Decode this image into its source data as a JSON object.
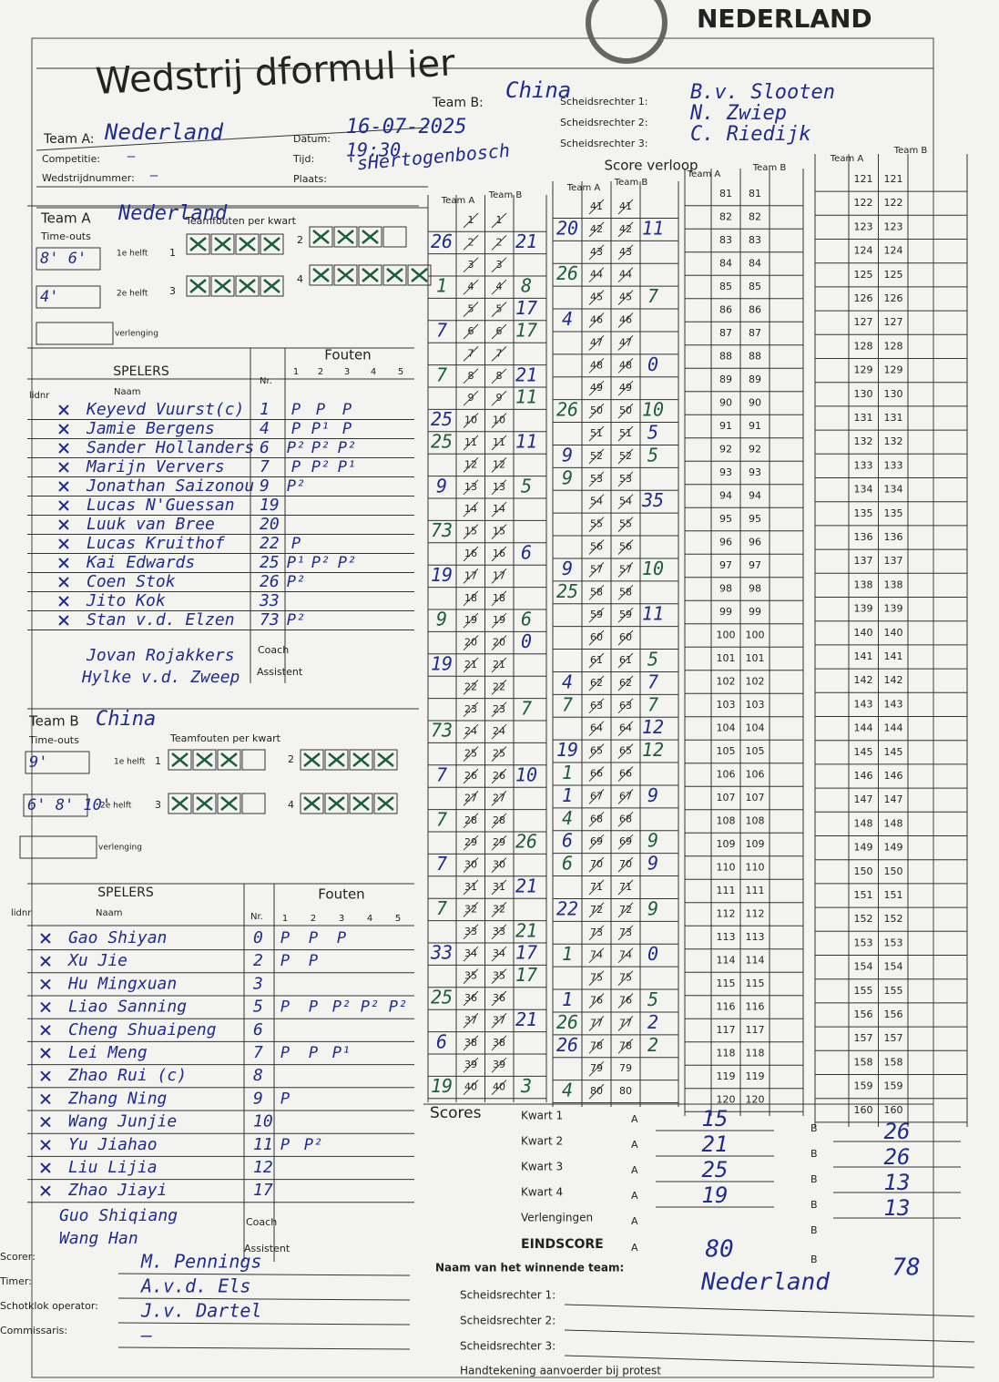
{
  "header": {
    "title": "Wedstrij dformul ier",
    "logo": "NEDERLAND"
  },
  "match": {
    "team_a_label": "Team A:",
    "team_a": "Nederland",
    "competitie_label": "Competitie:",
    "competitie": "—",
    "wedstrijdnummer_label": "Wedstrijdnummer:",
    "wedstrijdnummer": "—",
    "datum_label": "Datum:",
    "datum": "16-07-2025",
    "tijd_label": "Tijd:",
    "tijd": "19:30",
    "plaats_label": "Plaats:",
    "plaats": "'sHertogenbosch",
    "team_b_label": "Team B:",
    "team_b": "China",
    "referees": [
      {
        "label": "Scheidsrechter 1:",
        "name": "B.v. Slooten"
      },
      {
        "label": "Scheidsrechter 2:",
        "name": "N. Zwiep"
      },
      {
        "label": "Scheidsrechter 3:",
        "name": "C. Riedijk"
      }
    ]
  },
  "teams": [
    {
      "label": "Team A",
      "name": "Nederland",
      "timeouts_label": "Time-outs",
      "timeouts_first": "8' 6'",
      "timeouts_second": "4'",
      "first_half": "1e helft",
      "second_half": "2e helft",
      "overtime": "verlenging",
      "team_fouls_label": "Teamfouten per kwart",
      "quarters": [
        1,
        2,
        3,
        4
      ],
      "team_fouls": [
        4,
        3,
        4,
        5
      ],
      "players_label": "SPELERS",
      "fouls_label": "Fouten",
      "columns": [
        "lidnr",
        "Naam",
        "Nr.",
        "1",
        "2",
        "3",
        "4",
        "5"
      ],
      "players": [
        {
          "name": "Keyevd Vuurst(c)",
          "nr": 1,
          "fouls": [
            "P",
            "P",
            "P"
          ]
        },
        {
          "name": "Jamie Bergens",
          "nr": 4,
          "fouls": [
            "P",
            "P¹",
            "P"
          ]
        },
        {
          "name": "Sander Hollanders",
          "nr": 6,
          "fouls": [
            "P²",
            "P²",
            "P²"
          ]
        },
        {
          "name": "Marijn Ververs",
          "nr": 7,
          "fouls": [
            "P",
            "P²",
            "P¹"
          ]
        },
        {
          "name": "Jonathan Saizonou",
          "nr": 9,
          "fouls": [
            "P²"
          ]
        },
        {
          "name": "Lucas N'Guessan",
          "nr": 19,
          "fouls": []
        },
        {
          "name": "Luuk van Bree",
          "nr": 20,
          "fouls": []
        },
        {
          "name": "Lucas Kruithof",
          "nr": 22,
          "fouls": [
            "P"
          ]
        },
        {
          "name": "Kai Edwards",
          "nr": 25,
          "fouls": [
            "P¹",
            "P²",
            "P²"
          ]
        },
        {
          "name": "Coen Stok",
          "nr": 26,
          "fouls": [
            "P²"
          ]
        },
        {
          "name": "Jito Kok",
          "nr": 33,
          "fouls": []
        },
        {
          "name": "Stan v.d. Elzen",
          "nr": 73,
          "fouls": [
            "P²"
          ]
        }
      ],
      "coach_label": "Coach",
      "coach": "Jovan Rojakkers",
      "assistant_label": "Assistent",
      "assistant": "Hylke v.d. Zweep"
    },
    {
      "label": "Team B",
      "name": "China",
      "timeouts_label": "Time-outs",
      "timeouts_first": "9'",
      "timeouts_second": "6' 8' 10'",
      "first_half": "1e helft",
      "second_half": "2e helft",
      "overtime": "verlenging",
      "team_fouls_label": "Teamfouten per kwart",
      "quarters": [
        1,
        2,
        3,
        4
      ],
      "team_fouls": [
        3,
        4,
        3,
        4
      ],
      "players_label": "SPELERS",
      "fouls_label": "Fouten",
      "columns": [
        "lidnr",
        "Naam",
        "Nr.",
        "1",
        "2",
        "3",
        "4",
        "5"
      ],
      "players": [
        {
          "name": "Gao Shiyan",
          "nr": 0,
          "fouls": [
            "P",
            "P",
            "P"
          ]
        },
        {
          "name": "Xu Jie",
          "nr": 2,
          "fouls": [
            "P",
            "P"
          ]
        },
        {
          "name": "Hu Mingxuan",
          "nr": 3,
          "fouls": []
        },
        {
          "name": "Liao Sanning",
          "nr": 5,
          "fouls": [
            "P",
            "P",
            "P²",
            "P²",
            "P²"
          ]
        },
        {
          "name": "Cheng Shuaipeng",
          "nr": 6,
          "fouls": []
        },
        {
          "name": "Lei Meng",
          "nr": 7,
          "fouls": [
            "P",
            "P",
            "P¹"
          ]
        },
        {
          "name": "Zhao Rui (c)",
          "nr": 8,
          "fouls": []
        },
        {
          "name": "Zhang Ning",
          "nr": 9,
          "fouls": [
            "P"
          ]
        },
        {
          "name": "Wang Junjie",
          "nr": 10,
          "fouls": []
        },
        {
          "name": "Yu Jiahao",
          "nr": 11,
          "fouls": [
            "P",
            "P²"
          ]
        },
        {
          "name": "Liu Lijia",
          "nr": 12,
          "fouls": []
        },
        {
          "name": "Zhao Jiayi",
          "nr": 17,
          "fouls": []
        }
      ],
      "coach_label": "Coach",
      "coach": "Guo Shiqiang",
      "assistant_label": "Assistent",
      "assistant": "Wang Han"
    }
  ],
  "running_score": {
    "label": "Score verloop",
    "team_a_header": "Team A",
    "team_b_header": "Team B",
    "numbers": [
      1,
      2,
      3,
      4,
      5,
      6,
      7,
      8,
      9,
      10,
      11,
      12,
      13,
      14,
      15,
      16,
      17,
      18,
      19,
      20,
      21,
      22,
      23,
      24,
      25,
      26,
      27,
      28,
      29,
      30,
      31,
      32,
      33,
      34,
      35,
      36,
      37,
      38,
      39,
      40,
      41,
      42,
      43,
      44,
      45,
      46,
      47,
      48,
      49,
      50,
      51,
      52,
      53,
      54,
      55,
      56,
      57,
      58,
      59,
      60,
      61,
      62,
      63,
      64,
      65,
      66,
      67,
      68,
      69,
      70,
      71,
      72,
      73,
      74,
      75,
      76,
      77,
      78,
      79,
      80,
      81,
      82,
      83,
      84,
      85,
      86,
      87,
      88,
      89,
      90,
      91,
      92,
      93,
      94,
      95,
      96,
      97,
      98,
      99,
      100,
      101,
      102,
      103,
      104,
      105,
      106,
      107,
      108,
      109,
      110,
      111,
      112,
      113,
      114,
      115,
      116,
      117,
      118,
      119,
      120,
      121,
      122,
      123,
      124,
      125,
      126,
      127,
      128,
      129,
      130,
      131,
      132,
      133,
      134,
      135,
      136,
      137,
      138,
      139,
      140,
      141,
      142,
      143,
      144,
      145,
      146,
      147,
      148,
      149,
      150,
      151,
      152,
      153,
      154,
      155,
      156,
      157,
      158,
      159,
      160
    ],
    "team_a_marks": [
      {
        "score": 2,
        "player": 26
      },
      {
        "score": 4,
        "player": 1
      },
      {
        "score": 6,
        "player": 7
      },
      {
        "score": 8,
        "player": 7
      },
      {
        "score": 10,
        "player": 25
      },
      {
        "score": 11,
        "player": 25
      },
      {
        "score": 13,
        "player": 9
      },
      {
        "score": 15,
        "player": 73
      },
      {
        "score": 17,
        "player": 19
      },
      {
        "score": 19,
        "player": 9
      },
      {
        "score": 21,
        "player": 19
      },
      {
        "score": 24,
        "player": 73
      },
      {
        "score": 26,
        "player": 7
      },
      {
        "score": 28,
        "player": 7
      },
      {
        "score": 30,
        "player": 7
      },
      {
        "score": 32,
        "player": 7
      },
      {
        "score": 34,
        "player": 33
      },
      {
        "score": 36,
        "player": 25
      },
      {
        "score": 38,
        "player": 6
      },
      {
        "score": 40,
        "player": 19
      },
      {
        "score": 42,
        "player": 20
      },
      {
        "score": 44,
        "player": 26
      },
      {
        "score": 46,
        "player": 4
      },
      {
        "score": 50,
        "player": 26
      },
      {
        "score": 52,
        "player": 9
      },
      {
        "score": 53,
        "player": 9
      },
      {
        "score": 57,
        "player": 9
      },
      {
        "score": 58,
        "player": 25
      },
      {
        "score": 62,
        "player": 4
      },
      {
        "score": 63,
        "player": 7
      },
      {
        "score": 65,
        "player": 19
      },
      {
        "score": 66,
        "player": 1
      },
      {
        "score": 67,
        "player": 1
      },
      {
        "score": 68,
        "player": 4
      },
      {
        "score": 69,
        "player": 6
      },
      {
        "score": 70,
        "player": 6
      },
      {
        "score": 72,
        "player": 22
      },
      {
        "score": 74,
        "player": 1
      },
      {
        "score": 76,
        "player": 1
      },
      {
        "score": 77,
        "player": 26
      },
      {
        "score": 78,
        "player": 26
      },
      {
        "score": 80,
        "player": 4
      }
    ],
    "team_b_marks": [
      {
        "score": 2,
        "player": 21
      },
      {
        "score": 4,
        "player": 8
      },
      {
        "score": 5,
        "player": 17
      },
      {
        "score": 6,
        "player": 17
      },
      {
        "score": 8,
        "player": 21
      },
      {
        "score": 9,
        "player": 11
      },
      {
        "score": 11,
        "player": 11
      },
      {
        "score": 13,
        "player": 5
      },
      {
        "score": 16,
        "player": 6
      },
      {
        "score": 19,
        "player": 6
      },
      {
        "score": 20,
        "player": 0
      },
      {
        "score": 23,
        "player": 7
      },
      {
        "score": 26,
        "player": 10
      },
      {
        "score": 29,
        "player": 26
      },
      {
        "score": 31,
        "player": 21
      },
      {
        "score": 33,
        "player": 21
      },
      {
        "score": 34,
        "player": 17
      },
      {
        "score": 35,
        "player": 17
      },
      {
        "score": 37,
        "player": 21
      },
      {
        "score": 40,
        "player": 3
      },
      {
        "score": 42,
        "player": 11
      },
      {
        "score": 45,
        "player": 7
      },
      {
        "score": 48,
        "player": 0
      },
      {
        "score": 50,
        "player": 10
      },
      {
        "score": 51,
        "player": 5
      },
      {
        "score": 52,
        "player": 5
      },
      {
        "score": 54,
        "player": 35
      },
      {
        "score": 57,
        "player": 10
      },
      {
        "score": 59,
        "player": 11
      },
      {
        "score": 61,
        "player": 5
      },
      {
        "score": 62,
        "player": 7
      },
      {
        "score": 63,
        "player": 7
      },
      {
        "score": 64,
        "player": 12
      },
      {
        "score": 65,
        "player": 12
      },
      {
        "score": 67,
        "player": 9
      },
      {
        "score": 69,
        "player": 9
      },
      {
        "score": 70,
        "player": 9
      },
      {
        "score": 72,
        "player": 9
      },
      {
        "score": 74,
        "player": 0
      },
      {
        "score": 76,
        "player": 5
      },
      {
        "score": 77,
        "player": 2
      },
      {
        "score": 78,
        "player": 2
      }
    ]
  },
  "scores": {
    "label": "Scores",
    "a_label": "A",
    "b_label": "B",
    "quarters": [
      {
        "label": "Kwart 1",
        "a": 15,
        "b": 26
      },
      {
        "label": "Kwart 2",
        "a": 21,
        "b": 26
      },
      {
        "label": "Kwart 3",
        "a": 25,
        "b": 13
      },
      {
        "label": "Kwart 4",
        "a": 19,
        "b": 13
      }
    ],
    "overtime_label": "Verlengingen",
    "final_label": "EINDSCORE",
    "final_a": 80,
    "final_b": 78,
    "winner_label": "Naam van het winnende team:",
    "winner": "Nederland",
    "referee_sign_labels": [
      "Scheidsrechter 1:",
      "Scheidsrechter 2:",
      "Scheidsrechter 3:"
    ],
    "captain_label": "Handtekening aanvoerder bij protest"
  },
  "officials": [
    {
      "label": "Scorer:",
      "name": "M. Pennings"
    },
    {
      "label": "Timer:",
      "name": "A.v.d. Els"
    },
    {
      "label": "Schotklok operator:",
      "name": "J.v. Dartel"
    },
    {
      "label": "Commissaris:",
      "name": "—"
    }
  ]
}
